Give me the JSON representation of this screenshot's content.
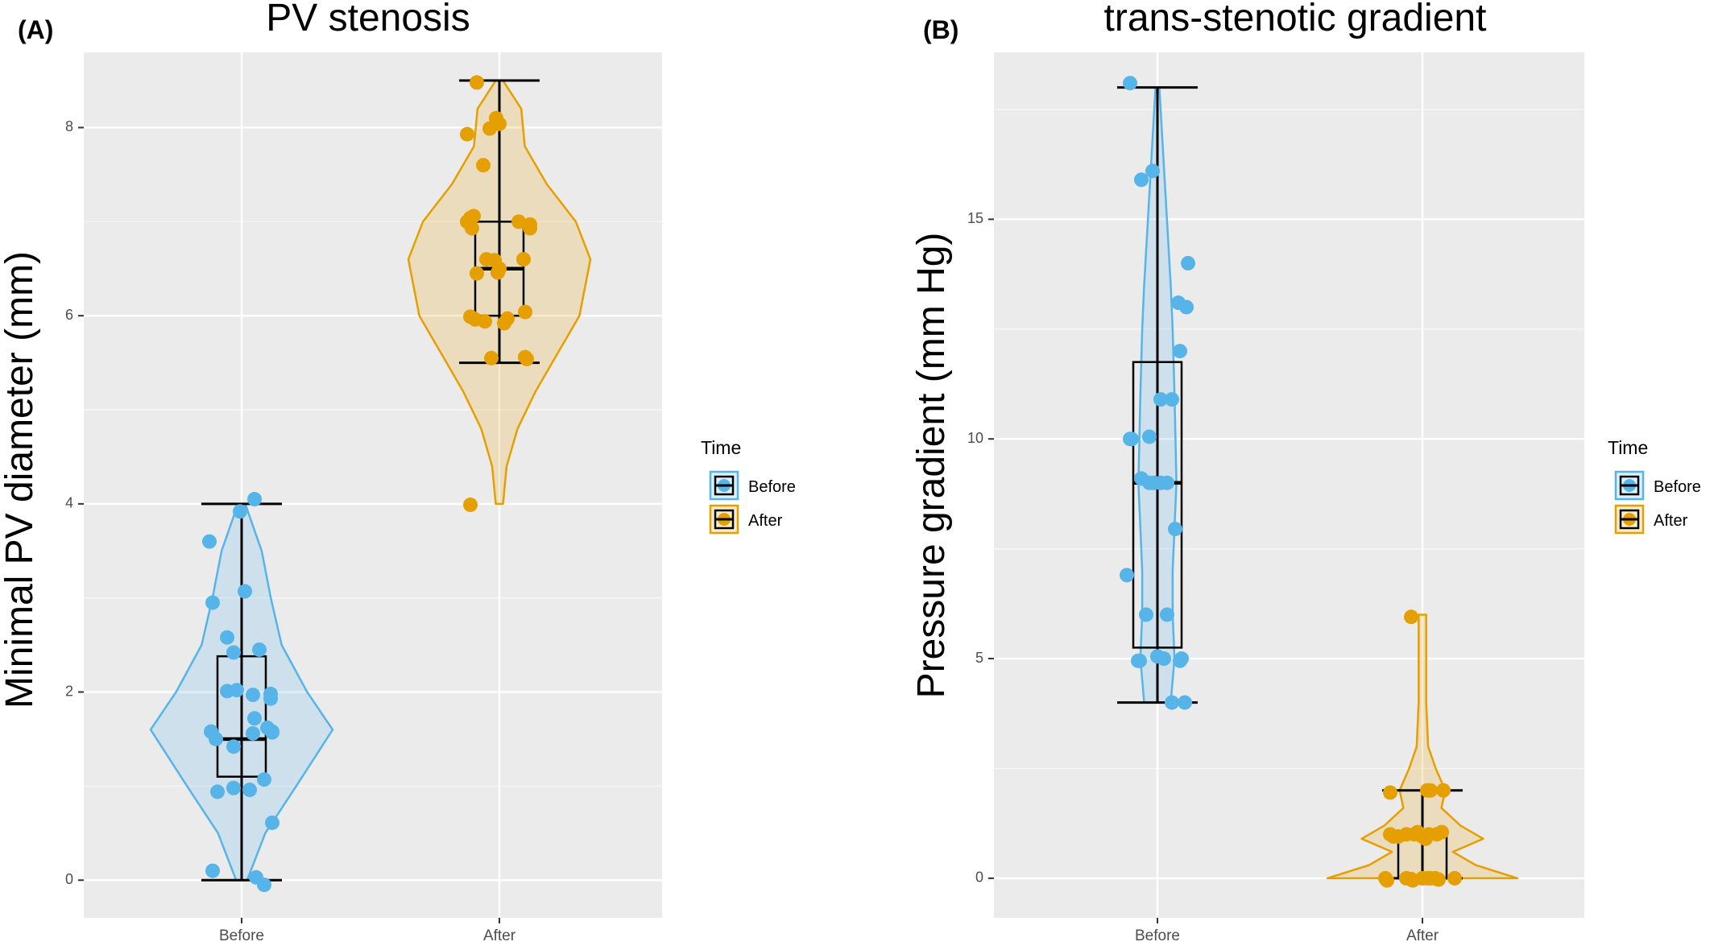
{
  "colors": {
    "panel_bg": "#EBEBEB",
    "grid": "#FFFFFF",
    "before": "#56B4E9",
    "after": "#E69F00",
    "box": "#000000"
  },
  "chart_data": [
    {
      "type": "violin",
      "panel_label": "(A)",
      "title": "PV stenosis",
      "xlabel": "",
      "ylabel": "Minimal PV diameter (mm)",
      "categories": [
        "Before",
        "After"
      ],
      "ylim": [
        -0.4,
        8.8
      ],
      "yticks": [
        0,
        2,
        4,
        6,
        8
      ],
      "grid": true,
      "legend": {
        "title": "Time",
        "entries": [
          "Before",
          "After"
        ],
        "position": "right"
      },
      "boxes": [
        {
          "group": "Before",
          "min": 0,
          "q1": 1.1,
          "median": 1.5,
          "q3": 2.38,
          "max": 4.0
        },
        {
          "group": "After",
          "min": 5.5,
          "q1": 6.0,
          "median": 6.5,
          "q3": 7.0,
          "max": 8.5
        }
      ],
      "density": [
        [
          [
            0,
            0.03
          ],
          [
            0.5,
            0.13
          ],
          [
            1.0,
            0.3
          ],
          [
            1.6,
            0.5
          ],
          [
            2.0,
            0.36
          ],
          [
            2.5,
            0.22
          ],
          [
            3.0,
            0.16
          ],
          [
            3.5,
            0.11
          ],
          [
            4.0,
            0.02
          ]
        ],
        [
          [
            4.0,
            0.02
          ],
          [
            4.4,
            0.04
          ],
          [
            4.8,
            0.1
          ],
          [
            5.2,
            0.2
          ],
          [
            5.6,
            0.32
          ],
          [
            6.0,
            0.44
          ],
          [
            6.6,
            0.5
          ],
          [
            7.0,
            0.42
          ],
          [
            7.4,
            0.26
          ],
          [
            7.8,
            0.14
          ],
          [
            8.2,
            0.12
          ],
          [
            8.5,
            0.02
          ]
        ]
      ],
      "points": [
        [
          [
            -0.2,
            3.6
          ],
          [
            -0.18,
            2.95
          ],
          [
            0.02,
            3.07
          ],
          [
            -0.01,
            3.92
          ],
          [
            0.08,
            4.05
          ],
          [
            -0.09,
            2.58
          ],
          [
            0.11,
            2.45
          ],
          [
            -0.05,
            2.42
          ],
          [
            0.18,
            1.98
          ],
          [
            0.18,
            1.93
          ],
          [
            0.08,
            1.72
          ],
          [
            0.07,
            1.56
          ],
          [
            0.16,
            1.62
          ],
          [
            0.19,
            1.57
          ],
          [
            0.19,
            1.58
          ],
          [
            -0.09,
            2.01
          ],
          [
            -0.03,
            2.02
          ],
          [
            0.07,
            1.97
          ],
          [
            -0.19,
            1.58
          ],
          [
            -0.16,
            1.5
          ],
          [
            -0.05,
            1.42
          ],
          [
            -0.15,
            0.94
          ],
          [
            -0.05,
            0.98
          ],
          [
            0.05,
            0.96
          ],
          [
            0.14,
            1.07
          ],
          [
            0.19,
            0.61
          ],
          [
            -0.18,
            0.1
          ],
          [
            0.09,
            0.03
          ],
          [
            0.14,
            -0.05
          ]
        ],
        [
          [
            -0.14,
            8.48
          ],
          [
            -0.02,
            8.1
          ],
          [
            0.0,
            8.04
          ],
          [
            -0.06,
            7.99
          ],
          [
            -0.2,
            7.93
          ],
          [
            -0.1,
            7.6
          ],
          [
            -0.18,
            7.04
          ],
          [
            -0.16,
            7.06
          ],
          [
            -0.2,
            7.0
          ],
          [
            -0.17,
            6.93
          ],
          [
            0.12,
            7.0
          ],
          [
            0.19,
            6.97
          ],
          [
            0.19,
            6.93
          ],
          [
            -0.08,
            6.6
          ],
          [
            -0.03,
            6.59
          ],
          [
            0.15,
            6.6
          ],
          [
            0.0,
            6.5
          ],
          [
            -0.01,
            6.46
          ],
          [
            -0.14,
            6.45
          ],
          [
            -0.18,
            5.99
          ],
          [
            -0.15,
            5.96
          ],
          [
            -0.09,
            5.94
          ],
          [
            0.05,
            5.97
          ],
          [
            0.16,
            6.04
          ],
          [
            0.03,
            5.92
          ],
          [
            -0.05,
            5.55
          ],
          [
            0.16,
            5.56
          ],
          [
            0.17,
            5.54
          ],
          [
            -0.18,
            3.99
          ]
        ]
      ]
    },
    {
      "type": "violin",
      "panel_label": "(B)",
      "title": "trans-stenotic gradient",
      "xlabel": "",
      "ylabel": "Pressure gradient (mm Hg)",
      "categories": [
        "Before",
        "After"
      ],
      "ylim": [
        -0.9,
        18.8
      ],
      "yticks": [
        0,
        5,
        10,
        15
      ],
      "grid": true,
      "legend": {
        "title": "Time",
        "entries": [
          "Before",
          "After"
        ],
        "position": "right"
      },
      "boxes": [
        {
          "group": "Before",
          "min": 4,
          "q1": 5.25,
          "median": 9,
          "q3": 11.75,
          "max": 18
        },
        {
          "group": "After",
          "min": 0,
          "q1": 0,
          "median": 1,
          "q3": 1,
          "max": 2
        }
      ],
      "density": [
        [
          [
            4.0,
            0.07
          ],
          [
            5.0,
            0.09
          ],
          [
            6.0,
            0.08
          ],
          [
            7.0,
            0.08
          ],
          [
            9.0,
            0.1
          ],
          [
            11.0,
            0.09
          ],
          [
            12.5,
            0.08
          ],
          [
            13.5,
            0.07
          ],
          [
            15.0,
            0.05
          ],
          [
            16.5,
            0.03
          ],
          [
            18.0,
            0.01
          ]
        ],
        [
          [
            0,
            0.5
          ],
          [
            0.3,
            0.28
          ],
          [
            0.6,
            0.16
          ],
          [
            0.9,
            0.32
          ],
          [
            1.2,
            0.2
          ],
          [
            1.6,
            0.1
          ],
          [
            2.0,
            0.12
          ],
          [
            2.5,
            0.07
          ],
          [
            3.0,
            0.03
          ],
          [
            4.0,
            0.02
          ],
          [
            5.0,
            0.02
          ],
          [
            6.0,
            0.02
          ]
        ]
      ],
      "points": [
        [
          [
            -0.17,
            18.1
          ],
          [
            -0.03,
            16.1
          ],
          [
            -0.1,
            15.9
          ],
          [
            0.19,
            14.0
          ],
          [
            0.13,
            13.1
          ],
          [
            0.18,
            13.0
          ],
          [
            0.14,
            12.0
          ],
          [
            0.09,
            10.9
          ],
          [
            0.02,
            10.9
          ],
          [
            -0.17,
            10.0
          ],
          [
            -0.16,
            10.0
          ],
          [
            -0.05,
            10.05
          ],
          [
            -0.1,
            9.1
          ],
          [
            -0.05,
            9.0
          ],
          [
            0.02,
            9.0
          ],
          [
            0.06,
            9.0
          ],
          [
            -0.02,
            9.0
          ],
          [
            0.11,
            7.95
          ],
          [
            -0.19,
            6.9
          ],
          [
            -0.07,
            6.0
          ],
          [
            0.06,
            6.0
          ],
          [
            -0.12,
            4.95
          ],
          [
            -0.11,
            4.95
          ],
          [
            0.0,
            5.05
          ],
          [
            0.04,
            5.0
          ],
          [
            0.14,
            4.95
          ],
          [
            0.15,
            5.0
          ],
          [
            0.09,
            4.0
          ],
          [
            0.17,
            4.0
          ]
        ],
        [
          [
            -0.07,
            5.95
          ],
          [
            -0.2,
            1.95
          ],
          [
            0.03,
            2.0
          ],
          [
            0.05,
            2.0
          ],
          [
            0.13,
            2.0
          ],
          [
            -0.2,
            1.0
          ],
          [
            -0.1,
            1.0
          ],
          [
            -0.05,
            1.0
          ],
          [
            -0.03,
            1.05
          ],
          [
            0.04,
            1.0
          ],
          [
            0.09,
            1.0
          ],
          [
            0.12,
            1.05
          ],
          [
            -0.15,
            0.95
          ],
          [
            -0.18,
            0.95
          ],
          [
            0.0,
            0.95
          ],
          [
            0.02,
            0.9
          ],
          [
            -0.23,
            0.0
          ],
          [
            -0.22,
            -0.05
          ],
          [
            -0.1,
            0.0
          ],
          [
            -0.06,
            -0.05
          ],
          [
            0.0,
            0.0
          ],
          [
            0.03,
            0.0
          ],
          [
            0.05,
            0.0
          ],
          [
            0.08,
            0.0
          ],
          [
            0.2,
            0.0
          ],
          [
            -0.07,
            -0.02
          ],
          [
            0.1,
            -0.03
          ]
        ]
      ]
    }
  ]
}
